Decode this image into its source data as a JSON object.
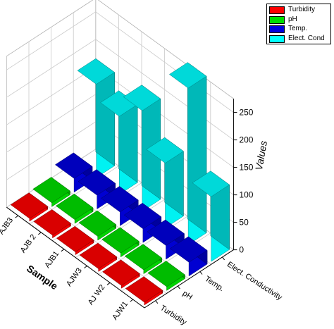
{
  "chart_data": {
    "type": "bar",
    "chart_kind": "3d-bar",
    "grid": true,
    "legend_position": "top-right",
    "zlabel": "Values",
    "xlabel": "Sample",
    "ylabel": "",
    "zlim": [
      0,
      275
    ],
    "z_ticks": [
      0,
      50,
      100,
      150,
      200,
      250
    ],
    "categories": [
      "AJW1",
      "AJ W2",
      "AJW3",
      "AJB1",
      "AJB 2",
      "AJB3"
    ],
    "parameters": [
      "Turbidity",
      "pH",
      "Temp.",
      "Elect. Conductivity"
    ],
    "series": [
      {
        "name": "Turbidity",
        "color": "#ff0000",
        "values": [
          5,
          5,
          5,
          5,
          5,
          5
        ]
      },
      {
        "name": "pH",
        "color": "#00dd00",
        "values": [
          7,
          7,
          7,
          7,
          7,
          7
        ]
      },
      {
        "name": "Temp.",
        "color": "#0000dd",
        "values": [
          25,
          25,
          25,
          25,
          25,
          25
        ]
      },
      {
        "name": "Elect. Cond",
        "color": "#00ffff",
        "values": [
          118,
          285,
          118,
          183,
          142,
          170
        ]
      }
    ]
  }
}
